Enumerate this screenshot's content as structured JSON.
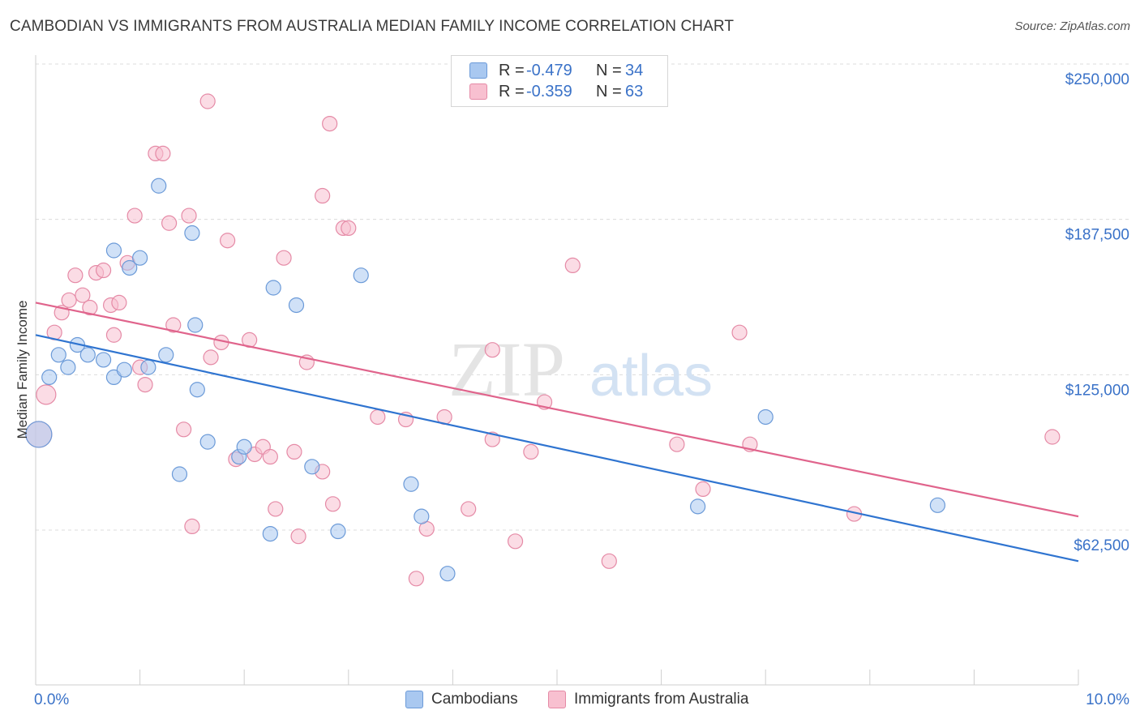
{
  "title": "CAMBODIAN VS IMMIGRANTS FROM AUSTRALIA MEDIAN FAMILY INCOME CORRELATION CHART",
  "source": "Source: ZipAtlas.com",
  "watermark": {
    "zip": "ZIP",
    "atlas": "atlas"
  },
  "legend": {
    "rows": [
      {
        "r_label": "R =",
        "r_value": "-0.479",
        "n_label": "N =",
        "n_value": "34",
        "color": "#a9c8f0",
        "border": "#6b9ad8"
      },
      {
        "r_label": "R =",
        "r_value": "-0.359",
        "n_label": "N =",
        "n_value": "63",
        "color": "#f8c0d0",
        "border": "#e58aa6"
      }
    ]
  },
  "bottom_legend": {
    "cambodians": "Cambodians",
    "australia": "Immigrants from Australia"
  },
  "chart_data": {
    "type": "scatter",
    "ylabel": "Median Family Income",
    "xlim": [
      0,
      10
    ],
    "ylim": [
      0,
      260000
    ],
    "x_tick_labels": {
      "left": "0.0%",
      "right": "10.0%"
    },
    "y_ticks": [
      {
        "value": 62500,
        "label": "$62,500"
      },
      {
        "value": 125000,
        "label": "$125,000"
      },
      {
        "value": 187500,
        "label": "$187,500"
      },
      {
        "value": 250000,
        "label": "$250,000"
      }
    ],
    "series": [
      {
        "name": "Cambodians",
        "color": "#a9c8f0",
        "stroke": "#6b9ad8",
        "line_color": "#2f74d0",
        "trend": {
          "x": [
            0,
            10
          ],
          "y": [
            141000,
            50000
          ]
        },
        "points": [
          {
            "x": 0.03,
            "y": 101000,
            "big": true
          },
          {
            "x": 0.13,
            "y": 124000
          },
          {
            "x": 0.22,
            "y": 133000
          },
          {
            "x": 0.31,
            "y": 128000
          },
          {
            "x": 0.4,
            "y": 137000
          },
          {
            "x": 0.5,
            "y": 133000
          },
          {
            "x": 0.65,
            "y": 131000
          },
          {
            "x": 0.75,
            "y": 175000
          },
          {
            "x": 0.75,
            "y": 124000
          },
          {
            "x": 0.85,
            "y": 127000
          },
          {
            "x": 0.9,
            "y": 168000
          },
          {
            "x": 1.0,
            "y": 172000
          },
          {
            "x": 1.08,
            "y": 128000
          },
          {
            "x": 1.18,
            "y": 201000
          },
          {
            "x": 1.25,
            "y": 133000
          },
          {
            "x": 1.38,
            "y": 85000
          },
          {
            "x": 1.5,
            "y": 182000
          },
          {
            "x": 1.53,
            "y": 145000
          },
          {
            "x": 1.55,
            "y": 119000
          },
          {
            "x": 1.65,
            "y": 98000
          },
          {
            "x": 1.95,
            "y": 92000
          },
          {
            "x": 2.0,
            "y": 96000
          },
          {
            "x": 2.25,
            "y": 61000
          },
          {
            "x": 2.28,
            "y": 160000
          },
          {
            "x": 2.5,
            "y": 153000
          },
          {
            "x": 2.65,
            "y": 88000
          },
          {
            "x": 2.9,
            "y": 62000
          },
          {
            "x": 3.12,
            "y": 165000
          },
          {
            "x": 3.6,
            "y": 81000
          },
          {
            "x": 3.7,
            "y": 68000
          },
          {
            "x": 3.95,
            "y": 45000
          },
          {
            "x": 6.35,
            "y": 72000
          },
          {
            "x": 7.0,
            "y": 108000
          },
          {
            "x": 8.65,
            "y": 72500
          }
        ]
      },
      {
        "name": "Immigrants from Australia",
        "color": "#f8c0d0",
        "stroke": "#e58aa6",
        "line_color": "#e0648c",
        "trend": {
          "x": [
            0,
            10
          ],
          "y": [
            154000,
            68000
          ]
        },
        "points": [
          {
            "x": 0.03,
            "y": 101000,
            "big": true
          },
          {
            "x": 0.1,
            "y": 117000,
            "mid": true
          },
          {
            "x": 0.18,
            "y": 142000
          },
          {
            "x": 0.25,
            "y": 150000
          },
          {
            "x": 0.32,
            "y": 155000
          },
          {
            "x": 0.38,
            "y": 165000
          },
          {
            "x": 0.45,
            "y": 157000
          },
          {
            "x": 0.52,
            "y": 152000
          },
          {
            "x": 0.58,
            "y": 166000
          },
          {
            "x": 0.65,
            "y": 167000
          },
          {
            "x": 0.72,
            "y": 153000
          },
          {
            "x": 0.75,
            "y": 141000
          },
          {
            "x": 0.8,
            "y": 154000
          },
          {
            "x": 0.88,
            "y": 170000
          },
          {
            "x": 0.95,
            "y": 189000
          },
          {
            "x": 1.0,
            "y": 128000
          },
          {
            "x": 1.05,
            "y": 121000
          },
          {
            "x": 1.15,
            "y": 214000
          },
          {
            "x": 1.22,
            "y": 214000
          },
          {
            "x": 1.28,
            "y": 186000
          },
          {
            "x": 1.32,
            "y": 145000
          },
          {
            "x": 1.42,
            "y": 103000
          },
          {
            "x": 1.5,
            "y": 64000
          },
          {
            "x": 1.47,
            "y": 189000
          },
          {
            "x": 1.65,
            "y": 235000
          },
          {
            "x": 1.68,
            "y": 132000
          },
          {
            "x": 1.78,
            "y": 138000
          },
          {
            "x": 1.84,
            "y": 179000
          },
          {
            "x": 1.92,
            "y": 91000
          },
          {
            "x": 2.05,
            "y": 139000
          },
          {
            "x": 2.1,
            "y": 93000
          },
          {
            "x": 2.18,
            "y": 96000
          },
          {
            "x": 2.25,
            "y": 92000
          },
          {
            "x": 2.3,
            "y": 71000
          },
          {
            "x": 2.38,
            "y": 172000
          },
          {
            "x": 2.48,
            "y": 94000
          },
          {
            "x": 2.52,
            "y": 60000
          },
          {
            "x": 2.6,
            "y": 130000
          },
          {
            "x": 2.75,
            "y": 86000
          },
          {
            "x": 2.75,
            "y": 197000
          },
          {
            "x": 2.82,
            "y": 226000
          },
          {
            "x": 2.85,
            "y": 73000
          },
          {
            "x": 2.95,
            "y": 184000
          },
          {
            "x": 3.0,
            "y": 184000
          },
          {
            "x": 3.28,
            "y": 108000
          },
          {
            "x": 3.55,
            "y": 107000
          },
          {
            "x": 3.75,
            "y": 63000
          },
          {
            "x": 3.65,
            "y": 43000
          },
          {
            "x": 3.92,
            "y": 108000
          },
          {
            "x": 4.15,
            "y": 71000
          },
          {
            "x": 4.38,
            "y": 99000
          },
          {
            "x": 4.38,
            "y": 135000
          },
          {
            "x": 4.6,
            "y": 58000
          },
          {
            "x": 4.75,
            "y": 94000
          },
          {
            "x": 4.88,
            "y": 114000
          },
          {
            "x": 5.15,
            "y": 169000
          },
          {
            "x": 5.5,
            "y": 50000
          },
          {
            "x": 6.15,
            "y": 97000
          },
          {
            "x": 6.4,
            "y": 79000
          },
          {
            "x": 6.75,
            "y": 142000
          },
          {
            "x": 6.85,
            "y": 97000
          },
          {
            "x": 7.85,
            "y": 69000
          },
          {
            "x": 9.75,
            "y": 100000
          }
        ]
      }
    ]
  }
}
